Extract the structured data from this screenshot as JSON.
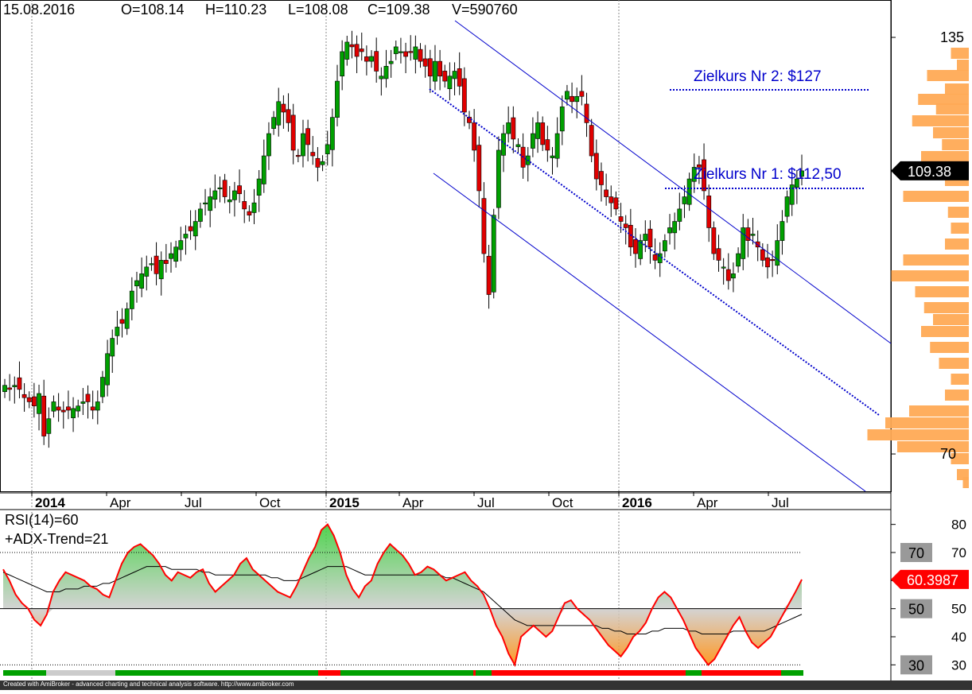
{
  "header": {
    "date": "15.08.2016",
    "open": "O=108.14",
    "high": "H=110.23",
    "low": "L=108.08",
    "close": "C=109.38",
    "volume": "V=590760"
  },
  "annotations": {
    "target2": "Zielkurs Nr 2: $127",
    "target1": "Zielkurs Nr 1: $112,50"
  },
  "price_tag": "109.38",
  "rsi": {
    "label1": "RSI(14)=60",
    "label2": "+ADX-Trend=21",
    "value_tag": "60.3987",
    "levels": [
      "70",
      "50",
      "30"
    ]
  },
  "footer": "Created with AmiBroker - advanced charting and technical analysis software. http://www.amibroker.com",
  "colors": {
    "up": "#00a000",
    "down": "#e00000",
    "channel": "#0000cc",
    "volume_profile": "#ffaa55",
    "rsi_line": "#ff0000",
    "rsi_fill_high": "#33cc33",
    "rsi_fill_low": "#ff8800"
  },
  "chart_data": [
    {
      "type": "candlestick",
      "title": "",
      "x_tick_labels": [
        "2014",
        "Apr",
        "Jul",
        "Oct",
        "2015",
        "Apr",
        "Jul",
        "Oct",
        "2016",
        "Apr",
        "Jul"
      ],
      "bold_ticks": [
        "2014",
        "2015",
        "2016"
      ],
      "y_tick_labels": [
        "135",
        "70"
      ],
      "y_range": [
        66,
        140
      ],
      "scale": "log",
      "weekly_close": [
        78,
        77.5,
        78,
        77.5,
        76.5,
        76,
        75.5,
        77,
        72,
        74,
        76,
        75,
        74.8,
        75,
        75.2,
        75.5,
        76,
        76,
        75,
        76,
        79,
        82,
        84,
        85.5,
        86,
        88,
        90.5,
        92,
        93,
        94,
        94.5,
        93,
        95,
        94.5,
        96,
        97,
        98,
        99,
        99.5,
        101,
        103,
        104,
        105,
        106,
        106.5,
        105,
        104.5,
        106,
        105.5,
        103,
        102,
        104,
        108,
        112,
        116,
        119,
        122,
        120,
        118,
        113,
        112,
        116,
        114,
        112,
        110,
        111,
        114,
        119,
        126,
        132,
        134,
        133,
        131,
        132,
        130,
        131,
        128,
        127,
        129,
        130,
        133,
        132,
        131,
        132,
        133,
        130,
        129,
        127,
        130,
        127,
        126,
        127,
        128,
        125,
        120,
        118,
        113,
        106,
        96,
        90,
        102,
        113,
        116,
        118,
        115,
        114,
        110,
        112,
        116,
        118,
        114,
        113,
        112,
        116,
        121,
        124,
        122,
        123,
        123,
        118,
        112,
        108,
        107,
        105,
        104,
        103,
        101,
        100,
        97,
        96,
        98,
        99,
        97,
        95,
        96,
        98,
        100,
        101,
        103,
        105,
        108,
        110,
        110,
        106,
        100,
        96,
        95,
        94,
        92,
        93,
        96,
        100,
        98,
        99,
        97,
        95,
        94,
        95,
        98,
        101,
        105,
        107,
        108,
        109.38
      ]
    },
    {
      "type": "line",
      "title": "RSI(14)",
      "y_range": [
        25,
        85
      ],
      "levels": [
        70,
        50,
        30
      ],
      "series": [
        {
          "name": "RSI(14)=60",
          "values": [
            64,
            60,
            55,
            52,
            50,
            46,
            44,
            48,
            56,
            60,
            63,
            62,
            61,
            60,
            58,
            57,
            55,
            54,
            60,
            66,
            70,
            72,
            73,
            71,
            69,
            66,
            62,
            60,
            63,
            62,
            61,
            63,
            64,
            59,
            56,
            58,
            60,
            62,
            66,
            68,
            64,
            62,
            60,
            58,
            56,
            55,
            54,
            58,
            63,
            68,
            72,
            78,
            80,
            76,
            70,
            62,
            57,
            54,
            58,
            60,
            66,
            70,
            73,
            71,
            69,
            66,
            62,
            63,
            65,
            64,
            62,
            60,
            61,
            62,
            63,
            60,
            58,
            55,
            50,
            44,
            40,
            34,
            30,
            40,
            42,
            44,
            42,
            40,
            42,
            47,
            52,
            53,
            50,
            48,
            46,
            43,
            40,
            37,
            35,
            33,
            36,
            40,
            42,
            45,
            50,
            54,
            56,
            54,
            50,
            46,
            41,
            36,
            33,
            30,
            32,
            36,
            40,
            44,
            47,
            42,
            38,
            36,
            38,
            40,
            44,
            48,
            52,
            56,
            60.3987
          ]
        },
        {
          "name": "MA",
          "values": [
            63,
            62,
            61,
            60,
            59,
            58,
            57,
            56,
            56,
            56,
            57,
            57,
            57,
            58,
            58,
            58,
            59,
            59,
            60,
            61,
            62,
            63,
            64,
            65,
            65,
            65,
            65,
            64,
            64,
            64,
            64,
            64,
            63,
            63,
            62,
            62,
            62,
            62,
            62,
            62,
            62,
            62,
            62,
            61,
            61,
            60,
            60,
            60,
            61,
            62,
            63,
            64,
            65,
            65,
            65,
            65,
            64,
            63,
            62,
            62,
            62,
            62,
            62,
            62,
            62,
            62,
            62,
            62,
            62,
            62,
            62,
            61,
            61,
            60,
            59,
            58,
            57,
            56,
            54,
            52,
            50,
            48,
            46,
            45,
            44,
            44,
            44,
            44,
            44,
            44,
            44,
            44,
            44,
            44,
            44,
            44,
            43,
            43,
            42,
            42,
            41,
            41,
            41,
            41,
            42,
            42,
            43,
            43,
            43,
            43,
            42,
            42,
            41,
            41,
            41,
            41,
            41,
            42,
            42,
            42,
            42,
            42,
            42,
            43,
            44,
            45,
            46,
            47,
            48
          ]
        }
      ]
    }
  ]
}
